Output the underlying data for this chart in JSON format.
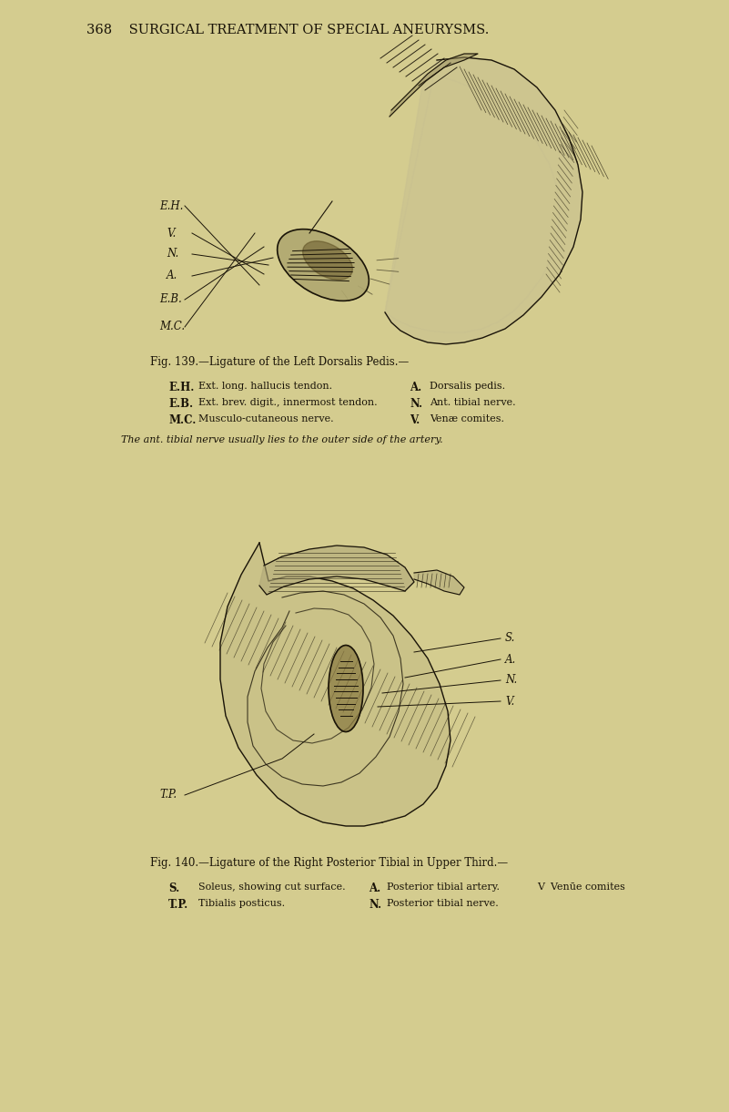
{
  "bg_color": "#d4cc8f",
  "text_color": "#1a1408",
  "dark_line": "#1a1408",
  "header_text": "368    SURGICAL TREATMENT OF SPECIAL ANEURYSMS.",
  "header_fontsize": 10.5,
  "fig139_title": "Fig. 139.—Ligature of the Left Dorsalis Pedis.—",
  "fig139_left_labels": [
    [
      "E.H.",
      "Ext. long. hallucis tendon."
    ],
    [
      "E.B.",
      "Ext. brev. digit., innermost tendon."
    ],
    [
      "M.C.",
      "Musculo-cutaneous nerve."
    ]
  ],
  "fig139_right_labels": [
    [
      "A.",
      "Dorsalis pedis."
    ],
    [
      "N.",
      "Ant. tibial nerve."
    ],
    [
      "V.",
      "Venæ comites."
    ]
  ],
  "fig139_note": "The ant. tibial nerve usually lies to the outer side of the artery.",
  "fig140_title": "Fig. 140.—Ligature of the Right Posterior Tibial in Upper Third.—",
  "fig140_left_labels": [
    [
      "S.",
      "Soleus, showing cut surface."
    ],
    [
      "T.P.",
      "Tibialis posticus."
    ]
  ],
  "fig140_mid_labels": [
    [
      "A.",
      "Posterior tibial artery."
    ],
    [
      "N.",
      "Posterior tibial nerve."
    ]
  ],
  "fig140_right_label": "V  Venūe comites",
  "label_fs": 8.0,
  "caption_fs": 8.5,
  "bold_abbr_fs": 8.5
}
